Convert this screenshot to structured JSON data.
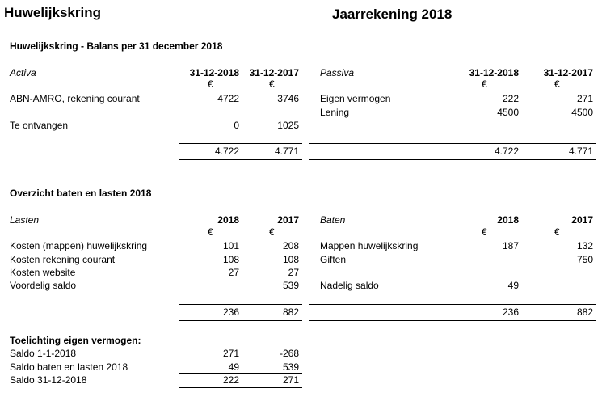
{
  "header": {
    "org": "Huwelijkskring",
    "title": "Jaarrekening 2018"
  },
  "balance": {
    "heading": "Huwelijkskring - Balans per 31 december 2018",
    "activa": {
      "label": "Activa",
      "col1": "31-12-2018",
      "col2": "31-12-2017",
      "cur1": "€",
      "cur2": "€",
      "rows": [
        {
          "label": "ABN-AMRO, rekening courant",
          "v1": "4722",
          "v2": "3746"
        },
        {
          "label": "Te ontvangen",
          "v1": "0",
          "v2": "1025"
        }
      ],
      "total1": "4.722",
      "total2": "4.771"
    },
    "passiva": {
      "label": "Passiva",
      "col1": "31-12-2018",
      "col2": "31-12-2017",
      "cur1": "€",
      "cur2": "€",
      "rows": [
        {
          "label": "Eigen vermogen",
          "v1": "222",
          "v2": "271"
        },
        {
          "label": "Lening",
          "v1": "4500",
          "v2": "4500"
        }
      ],
      "total1": "4.722",
      "total2": "4.771"
    }
  },
  "overview": {
    "heading": "Overzicht baten en lasten 2018",
    "lasten": {
      "label": "Lasten",
      "col1": "2018",
      "col2": "2017",
      "cur1": "€",
      "cur2": "€",
      "rows": [
        {
          "label": "Kosten (mappen) huwelijkskring",
          "v1": "101",
          "v2": "208"
        },
        {
          "label": "Kosten rekening courant",
          "v1": "108",
          "v2": "108"
        },
        {
          "label": "Kosten website",
          "v1": "27",
          "v2": "27"
        },
        {
          "label": "Voordelig saldo",
          "v1": "",
          "v2": "539"
        }
      ],
      "total1": "236",
      "total2": "882"
    },
    "baten": {
      "label": "Baten",
      "col1": "2018",
      "col2": "2017",
      "cur1": "€",
      "cur2": "€",
      "rows": [
        {
          "label": "Mappen huwelijkskring",
          "v1": "187",
          "v2": "132"
        },
        {
          "label": "Giften",
          "v1": "",
          "v2": "750"
        },
        {
          "label": "",
          "v1": "",
          "v2": ""
        },
        {
          "label": "Nadelig saldo",
          "v1": "49",
          "v2": ""
        }
      ],
      "total1": "236",
      "total2": "882"
    }
  },
  "equity": {
    "heading": "Toelichting eigen vermogen:",
    "rows": [
      {
        "label": "Saldo 1-1-2018",
        "v1": "271",
        "v2": "-268"
      },
      {
        "label": "Saldo baten en lasten 2018",
        "v1": "49",
        "v2": "539"
      },
      {
        "label": "Saldo 31-12-2018",
        "v1": "222",
        "v2": "271"
      }
    ]
  }
}
